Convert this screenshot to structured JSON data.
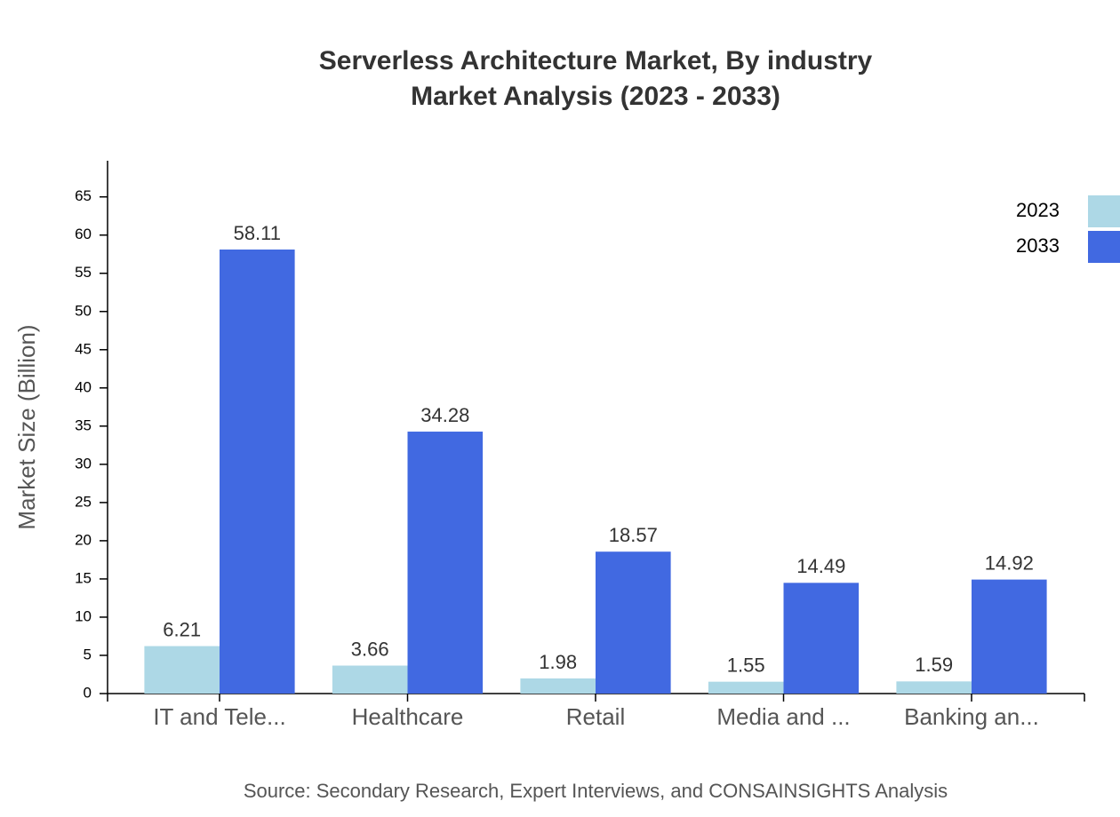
{
  "chart_data": {
    "type": "bar",
    "title": "Serverless Architecture Market, By industry",
    "subtitle": "Market Analysis (2023 - 2033)",
    "y_label": "Market Size (Billion)",
    "source": "Source: Secondary Research, Expert Interviews, and CONSAINSIGHTS Analysis",
    "categories": [
      "IT and Tele...",
      "Healthcare",
      "Retail",
      "Media and ...",
      "Banking an..."
    ],
    "series": [
      {
        "name": "2023",
        "color": "#add8e6",
        "values": [
          6.21,
          3.66,
          1.98,
          1.55,
          1.59
        ]
      },
      {
        "name": "2033",
        "color": "#4169e1",
        "values": [
          58.11,
          34.28,
          18.57,
          14.49,
          14.92
        ]
      }
    ],
    "ylim": [
      0,
      69.73
    ],
    "yticks": [
      0,
      5,
      10,
      15,
      20,
      25,
      30,
      35,
      40,
      45,
      50,
      55,
      60,
      65
    ],
    "legend": "top-right"
  }
}
